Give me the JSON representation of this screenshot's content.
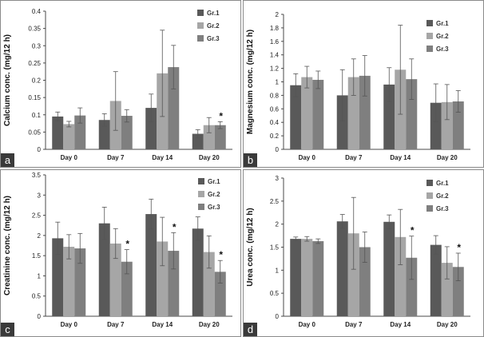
{
  "chart_data": [
    {
      "panel": "a",
      "type": "bar",
      "ylabel": "Calcium conc. (mg/12 h)",
      "categories": [
        "Day 0",
        "Day 7",
        "Day 14",
        "Day 20"
      ],
      "ylim": [
        0,
        0.4
      ],
      "yticks": [
        "0",
        "0.05",
        "0.1",
        "0.15",
        "0.2",
        "0.25",
        "0.3",
        "0.35",
        "0.4"
      ],
      "yticks_values": [
        0,
        0.05,
        0.1,
        0.15,
        0.2,
        0.25,
        0.3,
        0.35,
        0.4
      ],
      "series": [
        {
          "name": "Gr.1",
          "values": [
            0.095,
            0.085,
            0.12,
            0.045
          ],
          "errors": [
            0.013,
            0.018,
            0.04,
            0.012
          ]
        },
        {
          "name": "Gr.2",
          "values": [
            0.073,
            0.14,
            0.22,
            0.07
          ],
          "errors": [
            0.008,
            0.085,
            0.125,
            0.022
          ]
        },
        {
          "name": "Gr.3",
          "values": [
            0.098,
            0.097,
            0.238,
            0.07
          ],
          "errors": [
            0.022,
            0.018,
            0.063,
            0.01
          ]
        }
      ],
      "significance": [
        {
          "category": "Day 20",
          "series": "Gr.3",
          "mark": "*"
        }
      ]
    },
    {
      "panel": "b",
      "type": "bar",
      "ylabel": "Magnesium conc. (mg/12 h)",
      "categories": [
        "Day 0",
        "Day 7",
        "Day 14",
        "Day 20"
      ],
      "ylim": [
        0,
        2
      ],
      "yticks": [
        "0",
        "0.2",
        "0.4",
        "0.6",
        "0.8",
        "1",
        "1.2",
        "1.4",
        "1.6",
        "1.8",
        "2"
      ],
      "yticks_values": [
        0,
        0.2,
        0.4,
        0.6,
        0.8,
        1,
        1.2,
        1.4,
        1.6,
        1.8,
        2
      ],
      "series": [
        {
          "name": "Gr.1",
          "values": [
            0.95,
            0.8,
            0.96,
            0.69
          ],
          "errors": [
            0.17,
            0.38,
            0.25,
            0.28
          ]
        },
        {
          "name": "Gr.2",
          "values": [
            1.07,
            1.07,
            1.18,
            0.7
          ],
          "errors": [
            0.16,
            0.27,
            0.66,
            0.26
          ]
        },
        {
          "name": "Gr.3",
          "values": [
            1.03,
            1.09,
            1.04,
            0.71
          ],
          "errors": [
            0.13,
            0.3,
            0.3,
            0.16
          ]
        }
      ],
      "significance": []
    },
    {
      "panel": "c",
      "type": "bar",
      "ylabel": "Creatinine conc. (mg/12 h)",
      "categories": [
        "Day 0",
        "Day 7",
        "Day 14",
        "Day 20"
      ],
      "ylim": [
        0,
        3.5
      ],
      "yticks": [
        "0",
        "0.5",
        "1",
        "1.5",
        "2",
        "2.5",
        "3",
        "3.5"
      ],
      "yticks_values": [
        0,
        0.5,
        1,
        1.5,
        2,
        2.5,
        3,
        3.5
      ],
      "series": [
        {
          "name": "Gr.1",
          "values": [
            1.93,
            2.3,
            2.53,
            2.17
          ],
          "errors": [
            0.4,
            0.4,
            0.37,
            0.29
          ]
        },
        {
          "name": "Gr.2",
          "values": [
            1.72,
            1.8,
            1.85,
            1.59
          ],
          "errors": [
            0.3,
            0.37,
            0.6,
            0.4
          ]
        },
        {
          "name": "Gr.3",
          "values": [
            1.68,
            1.35,
            1.62,
            1.1
          ],
          "errors": [
            0.37,
            0.3,
            0.45,
            0.28
          ]
        }
      ],
      "significance": [
        {
          "category": "Day 7",
          "series": "Gr.3",
          "mark": "*"
        },
        {
          "category": "Day 14",
          "series": "Gr.3",
          "mark": "*"
        },
        {
          "category": "Day 20",
          "series": "Gr.3",
          "mark": "*"
        }
      ]
    },
    {
      "panel": "d",
      "type": "bar",
      "ylabel": "Urea conc. (mg/12 h)",
      "categories": [
        "Day 0",
        "Day 7",
        "Day 14",
        "Day 20"
      ],
      "ylim": [
        0,
        3
      ],
      "yticks": [
        "0",
        "0.5",
        "1",
        "1.5",
        "2",
        "2.5",
        "3"
      ],
      "yticks_values": [
        0,
        0.5,
        1,
        1.5,
        2,
        2.5,
        3
      ],
      "series": [
        {
          "name": "Gr.1",
          "values": [
            1.68,
            2.06,
            2.05,
            1.55
          ],
          "errors": [
            0.04,
            0.15,
            0.15,
            0.2
          ]
        },
        {
          "name": "Gr.2",
          "values": [
            1.68,
            1.8,
            1.72,
            1.16
          ],
          "errors": [
            0.05,
            0.78,
            0.6,
            0.35
          ]
        },
        {
          "name": "Gr.3",
          "values": [
            1.63,
            1.5,
            1.27,
            1.07
          ],
          "errors": [
            0.05,
            0.33,
            0.47,
            0.3
          ]
        }
      ],
      "significance": [
        {
          "category": "Day 14",
          "series": "Gr.3",
          "mark": "*"
        },
        {
          "category": "Day 20",
          "series": "Gr.3",
          "mark": "*"
        }
      ]
    }
  ],
  "series_colors": {
    "Gr.1": "#595959",
    "Gr.2": "#a6a6a6",
    "Gr.3": "#7f7f7f"
  },
  "error_bar_color": "#555555"
}
